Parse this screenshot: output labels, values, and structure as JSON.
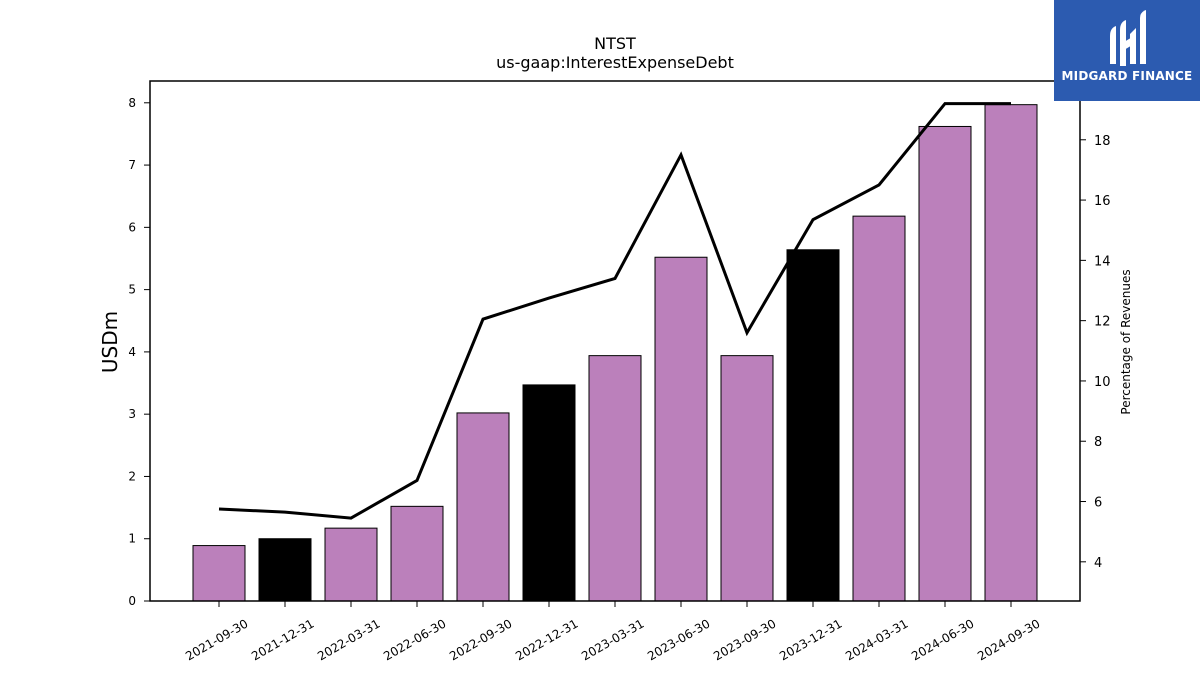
{
  "chart_data": {
    "type": "bar",
    "title": "NTST",
    "subtitle": "us-gaap:InterestExpenseDebt",
    "ylabel": "USDm",
    "y2label": "Percentage of Revenues",
    "categories": [
      "2021-09-30",
      "2021-12-31",
      "2022-03-31",
      "2022-06-30",
      "2022-09-30",
      "2022-12-31",
      "2023-03-31",
      "2023-06-30",
      "2023-09-30",
      "2023-12-31",
      "2024-03-31",
      "2024-06-30",
      "2024-09-30"
    ],
    "values": [
      0.89,
      1.0,
      1.17,
      1.52,
      3.02,
      3.47,
      3.94,
      5.52,
      3.94,
      5.64,
      6.18,
      7.62,
      7.97
    ],
    "bar_colors": [
      "#bb80bb",
      "#000000",
      "#bb80bb",
      "#bb80bb",
      "#bb80bb",
      "#000000",
      "#bb80bb",
      "#bb80bb",
      "#bb80bb",
      "#000000",
      "#bb80bb",
      "#bb80bb",
      "#bb80bb"
    ],
    "line_values": [
      5.75,
      5.65,
      5.45,
      6.7,
      12.05,
      12.75,
      13.4,
      17.5,
      11.6,
      15.35,
      16.5,
      19.2,
      19.2
    ],
    "ylim": [
      0,
      8.35
    ],
    "yticks": [
      0,
      1,
      2,
      3,
      4,
      5,
      6,
      7,
      8
    ],
    "y2lim": [
      2.7,
      19.95
    ],
    "y2ticks": [
      4,
      6,
      8,
      10,
      12,
      14,
      16,
      18
    ],
    "line_color": "#000000",
    "grid": false,
    "legend": "none"
  },
  "logo": {
    "text": "MIDGARD FINANCE",
    "bg": "#2c5bb0"
  }
}
